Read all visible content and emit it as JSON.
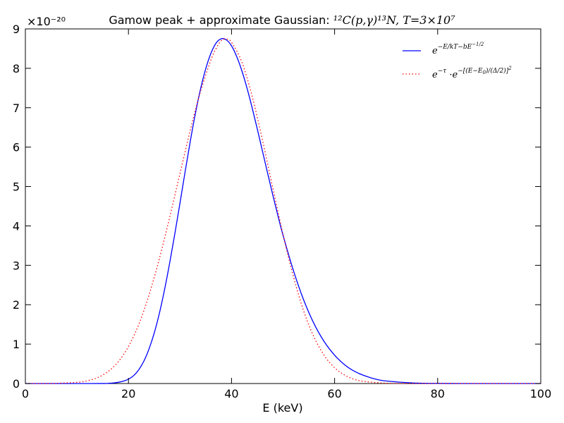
{
  "chart_data": {
    "type": "line",
    "title": {
      "prefix": "Gamow peak + approximate Gaussian: ",
      "reaction": "¹²C(p,γ)¹³N, T=3×10⁷"
    },
    "xlabel": "E (keV)",
    "ylabel": "",
    "xlim": [
      0,
      100
    ],
    "ylim": [
      0,
      9e-20
    ],
    "y_offset_label": "×10⁻²⁰",
    "x_ticks": [
      0,
      20,
      40,
      60,
      80,
      100
    ],
    "y_ticks": [
      0,
      1,
      2,
      3,
      4,
      5,
      6,
      7,
      8,
      9
    ],
    "y_tick_scale": 1e-20,
    "grid": false,
    "legend_position": "top-right",
    "series": [
      {
        "name": "e^{-E/kT - bE^{-1/2}}",
        "style": "solid",
        "color": "#0000ff",
        "x": [
          0,
          10,
          15,
          16,
          17,
          18,
          19,
          20,
          21,
          22,
          23,
          24,
          25,
          26,
          27,
          28,
          29,
          30,
          31,
          32,
          33,
          34,
          35,
          36,
          37,
          38,
          39,
          40,
          41,
          42,
          43,
          44,
          45,
          46,
          47,
          48,
          49,
          50,
          52,
          54,
          56,
          58,
          60,
          62,
          64,
          66,
          68,
          70,
          75,
          80,
          85,
          90,
          100
        ],
        "y": [
          0,
          0,
          1e-23,
          4e-23,
          1.3e-22,
          3e-22,
          6e-22,
          1.1e-21,
          2e-21,
          3.5e-21,
          5.7e-21,
          8.8e-21,
          1.28e-20,
          1.78e-20,
          2.38e-20,
          3.06e-20,
          3.8e-20,
          4.58e-20,
          5.38e-20,
          6.15e-20,
          6.86e-20,
          7.48e-20,
          7.99e-20,
          8.38e-20,
          8.64e-20,
          8.75e-20,
          8.72e-20,
          8.57e-20,
          8.3e-20,
          7.94e-20,
          7.5e-20,
          7e-20,
          6.46e-20,
          5.9e-20,
          5.34e-20,
          4.79e-20,
          4.26e-20,
          3.76e-20,
          2.87e-20,
          2.12e-20,
          1.52e-20,
          1.06e-20,
          7.2e-21,
          4.7e-21,
          3e-21,
          1.9e-21,
          1.1e-21,
          6.5e-22,
          1.5e-22,
          3e-23,
          5e-24,
          0,
          0
        ]
      },
      {
        "name": "e^{-τ}·e^{-[(E-E_0)/(Δ/2)]^2}",
        "style": "dotted",
        "color": "#ff0000",
        "x": [
          0,
          5,
          10,
          12,
          14,
          16,
          18,
          20,
          22,
          24,
          26,
          28,
          30,
          32,
          34,
          36,
          37,
          38,
          39,
          40,
          42,
          44,
          46,
          48,
          50,
          52,
          54,
          56,
          58,
          60,
          62,
          64,
          66,
          70,
          75,
          80,
          100
        ],
        "y": [
          0,
          2e-23,
          3e-22,
          7e-22,
          1.5e-21,
          3e-21,
          5.5e-21,
          9.4e-21,
          1.5e-20,
          2.25e-20,
          3.17e-20,
          4.22e-20,
          5.33e-20,
          6.43e-20,
          7.42e-20,
          8.21e-20,
          8.5e-20,
          8.7e-20,
          8.74e-20,
          8.66e-20,
          8.16e-20,
          7.29e-20,
          6.18e-20,
          4.97e-20,
          3.78e-20,
          2.72e-20,
          1.84e-20,
          1.18e-20,
          7.1e-21,
          4e-21,
          2.1e-21,
          1e-21,
          5e-22,
          8e-23,
          5e-24,
          0,
          0
        ]
      }
    ]
  }
}
